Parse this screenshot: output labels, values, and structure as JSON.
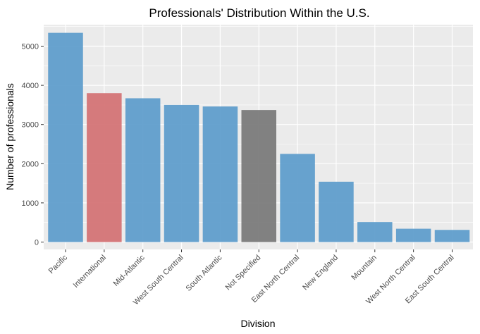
{
  "chart_data": {
    "type": "bar",
    "title": "Professionals' Distribution Within the U.S.",
    "xlabel": "Division",
    "ylabel": "Number of professionals",
    "ylim": [
      0,
      5500
    ],
    "yticks": [
      0,
      1000,
      2000,
      3000,
      4000,
      5000
    ],
    "grid": true,
    "categories": [
      "Pacific",
      "International",
      "Mid-Atlantic",
      "West South Central",
      "South Atlantic",
      "Not Specified",
      "East North Central",
      "New England",
      "Mountain",
      "West North Central",
      "East South Central"
    ],
    "values": [
      5340,
      3800,
      3670,
      3500,
      3460,
      3370,
      2250,
      1540,
      510,
      340,
      310
    ],
    "colors": [
      "#5b9bcb",
      "#d37072",
      "#5b9bcb",
      "#5b9bcb",
      "#5b9bcb",
      "#777777",
      "#5b9bcb",
      "#5b9bcb",
      "#5b9bcb",
      "#5b9bcb",
      "#5b9bcb"
    ],
    "panel_color": "#ebebeb",
    "grid_color": "#ffffff"
  }
}
